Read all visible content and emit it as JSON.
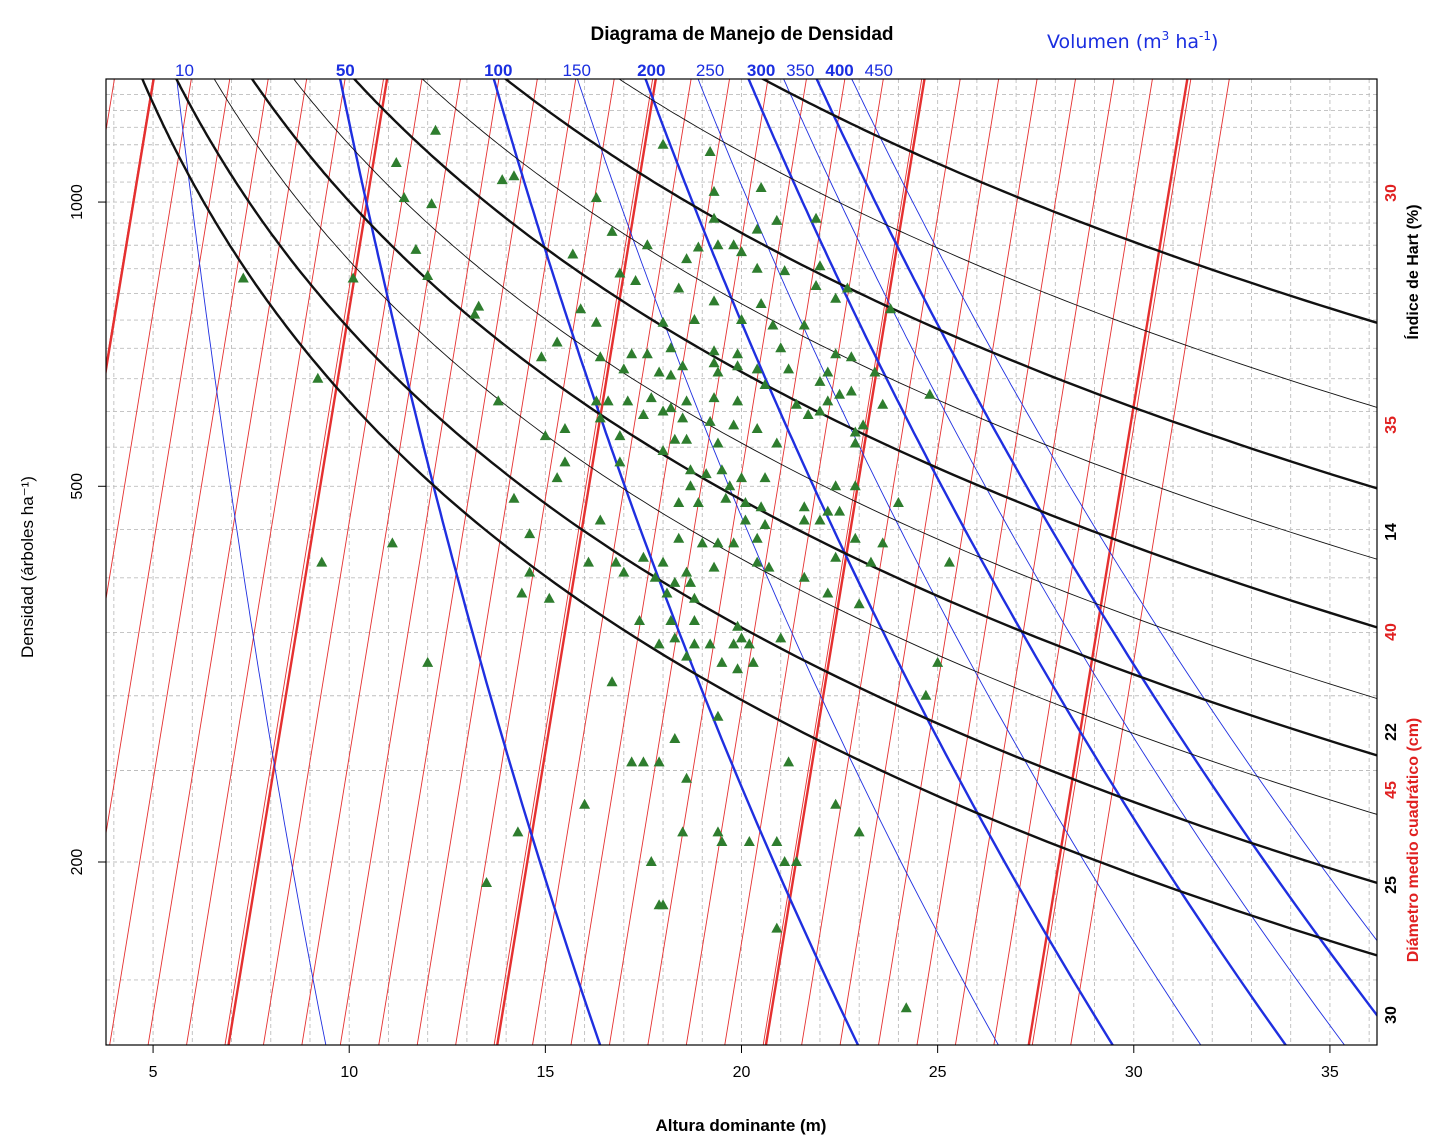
{
  "chart_data": {
    "type": "scatter",
    "title": "Diagrama de Manejo de Densidad",
    "xlabel": "Altura dominante (m)",
    "ylabel": "Densidad (árboles ha⁻¹)",
    "xlim": [
      3.8,
      36.2
    ],
    "ylim": [
      128,
      1350
    ],
    "y_scale": "log",
    "x_ticks": [
      "5",
      "10",
      "15",
      "20",
      "25",
      "30",
      "35"
    ],
    "y_ticks": [
      "200",
      "500",
      "1000"
    ],
    "grid": true,
    "volume_axis": {
      "title_text": "Volumen (m",
      "title_sup1": "3",
      "title_mid": " ha",
      "title_sup2": "-1",
      "title_close": ")",
      "color": "#1a2ee0",
      "labels": [
        {
          "text": "10",
          "value": 10,
          "bold": false
        },
        {
          "text": "50",
          "value": 50,
          "bold": true
        },
        {
          "text": "100",
          "value": 100,
          "bold": true
        },
        {
          "text": "150",
          "value": 150,
          "bold": false
        },
        {
          "text": "200",
          "value": 200,
          "bold": true
        },
        {
          "text": "250",
          "value": 250,
          "bold": false
        },
        {
          "text": "300",
          "value": 300,
          "bold": true
        },
        {
          "text": "350",
          "value": 350,
          "bold": false
        },
        {
          "text": "400",
          "value": 400,
          "bold": true
        },
        {
          "text": "450",
          "value": 450,
          "bold": false
        }
      ]
    },
    "hart_index": {
      "label": "Índice de Hart (%)",
      "color": "#000000",
      "labels": [
        "14",
        "22",
        "25",
        "30"
      ]
    },
    "dmc": {
      "label": "Diámetro medio cuadrático (cm)",
      "color": "#e02020",
      "labels": [
        "30",
        "35",
        "40",
        "45"
      ]
    },
    "points": [
      [
        12.2,
        1190
      ],
      [
        18.0,
        1150
      ],
      [
        19.2,
        1130
      ],
      [
        11.2,
        1100
      ],
      [
        14.2,
        1065
      ],
      [
        13.9,
        1055
      ],
      [
        20.5,
        1035
      ],
      [
        19.3,
        1025
      ],
      [
        16.3,
        1010
      ],
      [
        11.4,
        1010
      ],
      [
        12.1,
        995
      ],
      [
        21.9,
        960
      ],
      [
        20.9,
        955
      ],
      [
        19.3,
        960
      ],
      [
        16.7,
        930
      ],
      [
        20.4,
        935
      ],
      [
        17.6,
        900
      ],
      [
        18.9,
        895
      ],
      [
        19.4,
        900
      ],
      [
        19.8,
        900
      ],
      [
        20.0,
        885
      ],
      [
        15.7,
        880
      ],
      [
        18.6,
        870
      ],
      [
        22.0,
        855
      ],
      [
        20.4,
        850
      ],
      [
        21.1,
        845
      ],
      [
        11.7,
        890
      ],
      [
        7.3,
        830
      ],
      [
        10.1,
        830
      ],
      [
        12.0,
        835
      ],
      [
        16.9,
        840
      ],
      [
        17.3,
        825
      ],
      [
        18.4,
        810
      ],
      [
        21.9,
        815
      ],
      [
        22.7,
        810
      ],
      [
        19.3,
        785
      ],
      [
        20.5,
        780
      ],
      [
        22.4,
        790
      ],
      [
        15.9,
        770
      ],
      [
        16.3,
        745
      ],
      [
        18.0,
        745
      ],
      [
        18.8,
        750
      ],
      [
        20.0,
        750
      ],
      [
        20.8,
        740
      ],
      [
        21.6,
        740
      ],
      [
        23.8,
        770
      ],
      [
        13.3,
        775
      ],
      [
        13.2,
        760
      ],
      [
        15.3,
        710
      ],
      [
        17.2,
        690
      ],
      [
        17.6,
        690
      ],
      [
        18.2,
        700
      ],
      [
        19.3,
        695
      ],
      [
        19.9,
        690
      ],
      [
        21.0,
        700
      ],
      [
        22.4,
        690
      ],
      [
        22.8,
        685
      ],
      [
        14.9,
        685
      ],
      [
        16.4,
        685
      ],
      [
        17.9,
        660
      ],
      [
        18.5,
        670
      ],
      [
        19.3,
        675
      ],
      [
        19.9,
        670
      ],
      [
        20.4,
        665
      ],
      [
        21.2,
        665
      ],
      [
        22.2,
        660
      ],
      [
        22.0,
        645
      ],
      [
        20.6,
        640
      ],
      [
        19.4,
        660
      ],
      [
        18.2,
        655
      ],
      [
        17.0,
        665
      ],
      [
        23.4,
        660
      ],
      [
        9.2,
        650
      ],
      [
        13.8,
        615
      ],
      [
        16.3,
        615
      ],
      [
        16.6,
        615
      ],
      [
        17.1,
        615
      ],
      [
        17.7,
        620
      ],
      [
        18.2,
        605
      ],
      [
        18.6,
        615
      ],
      [
        19.3,
        620
      ],
      [
        19.9,
        615
      ],
      [
        21.4,
        610
      ],
      [
        22.2,
        615
      ],
      [
        22.5,
        625
      ],
      [
        22.8,
        630
      ],
      [
        23.6,
        610
      ],
      [
        24.8,
        625
      ],
      [
        16.4,
        590
      ],
      [
        17.5,
        595
      ],
      [
        18.0,
        600
      ],
      [
        18.5,
        590
      ],
      [
        19.2,
        585
      ],
      [
        19.8,
        580
      ],
      [
        20.4,
        575
      ],
      [
        21.7,
        595
      ],
      [
        22.0,
        600
      ],
      [
        22.9,
        570
      ],
      [
        23.1,
        580
      ],
      [
        15.0,
        565
      ],
      [
        15.5,
        575
      ],
      [
        16.9,
        565
      ],
      [
        18.3,
        560
      ],
      [
        18.6,
        560
      ],
      [
        19.4,
        555
      ],
      [
        20.9,
        555
      ],
      [
        22.9,
        555
      ],
      [
        15.5,
        530
      ],
      [
        16.9,
        530
      ],
      [
        18.0,
        545
      ],
      [
        18.7,
        520
      ],
      [
        19.1,
        515
      ],
      [
        19.5,
        520
      ],
      [
        20.0,
        510
      ],
      [
        20.6,
        510
      ],
      [
        15.3,
        510
      ],
      [
        18.7,
        500
      ],
      [
        19.7,
        500
      ],
      [
        22.4,
        500
      ],
      [
        22.9,
        500
      ],
      [
        14.2,
        485
      ],
      [
        18.4,
        480
      ],
      [
        18.9,
        480
      ],
      [
        19.6,
        485
      ],
      [
        20.1,
        480
      ],
      [
        20.5,
        475
      ],
      [
        21.6,
        475
      ],
      [
        22.2,
        470
      ],
      [
        22.5,
        470
      ],
      [
        24.0,
        480
      ],
      [
        16.4,
        460
      ],
      [
        20.1,
        460
      ],
      [
        20.6,
        455
      ],
      [
        21.6,
        460
      ],
      [
        22.0,
        460
      ],
      [
        14.6,
        445
      ],
      [
        11.1,
        435
      ],
      [
        18.4,
        440
      ],
      [
        19.0,
        435
      ],
      [
        19.4,
        435
      ],
      [
        19.8,
        435
      ],
      [
        20.4,
        440
      ],
      [
        22.9,
        440
      ],
      [
        23.6,
        435
      ],
      [
        9.3,
        415
      ],
      [
        16.1,
        415
      ],
      [
        16.8,
        415
      ],
      [
        17.5,
        420
      ],
      [
        18.0,
        415
      ],
      [
        18.6,
        405
      ],
      [
        19.3,
        410
      ],
      [
        20.4,
        415
      ],
      [
        20.7,
        410
      ],
      [
        22.4,
        420
      ],
      [
        23.3,
        415
      ],
      [
        25.3,
        415
      ],
      [
        14.6,
        405
      ],
      [
        17.0,
        405
      ],
      [
        17.8,
        400
      ],
      [
        18.3,
        395
      ],
      [
        18.7,
        395
      ],
      [
        21.6,
        400
      ],
      [
        14.4,
        385
      ],
      [
        15.1,
        380
      ],
      [
        18.1,
        385
      ],
      [
        18.8,
        380
      ],
      [
        22.2,
        385
      ],
      [
        23.0,
        375
      ],
      [
        17.4,
        360
      ],
      [
        18.2,
        360
      ],
      [
        18.8,
        360
      ],
      [
        19.9,
        355
      ],
      [
        20.0,
        345
      ],
      [
        18.3,
        345
      ],
      [
        17.9,
        340
      ],
      [
        18.8,
        340
      ],
      [
        19.2,
        340
      ],
      [
        19.8,
        340
      ],
      [
        20.2,
        340
      ],
      [
        12.0,
        325
      ],
      [
        18.6,
        330
      ],
      [
        19.5,
        325
      ],
      [
        19.9,
        320
      ],
      [
        20.3,
        325
      ],
      [
        21.0,
        345
      ],
      [
        16.7,
        310
      ],
      [
        25.0,
        325
      ],
      [
        24.7,
        300
      ],
      [
        19.4,
        285
      ],
      [
        18.3,
        270
      ],
      [
        17.2,
        255
      ],
      [
        17.5,
        255
      ],
      [
        17.9,
        255
      ],
      [
        18.6,
        245
      ],
      [
        21.2,
        255
      ],
      [
        16.0,
        230
      ],
      [
        22.4,
        230
      ],
      [
        14.3,
        215
      ],
      [
        18.5,
        215
      ],
      [
        19.4,
        215
      ],
      [
        20.9,
        210
      ],
      [
        19.5,
        210
      ],
      [
        20.2,
        210
      ],
      [
        23.0,
        215
      ],
      [
        17.7,
        200
      ],
      [
        21.1,
        200
      ],
      [
        21.4,
        200
      ],
      [
        13.5,
        190
      ],
      [
        17.9,
        180
      ],
      [
        18.0,
        180
      ],
      [
        20.9,
        170
      ],
      [
        24.2,
        140
      ]
    ]
  }
}
